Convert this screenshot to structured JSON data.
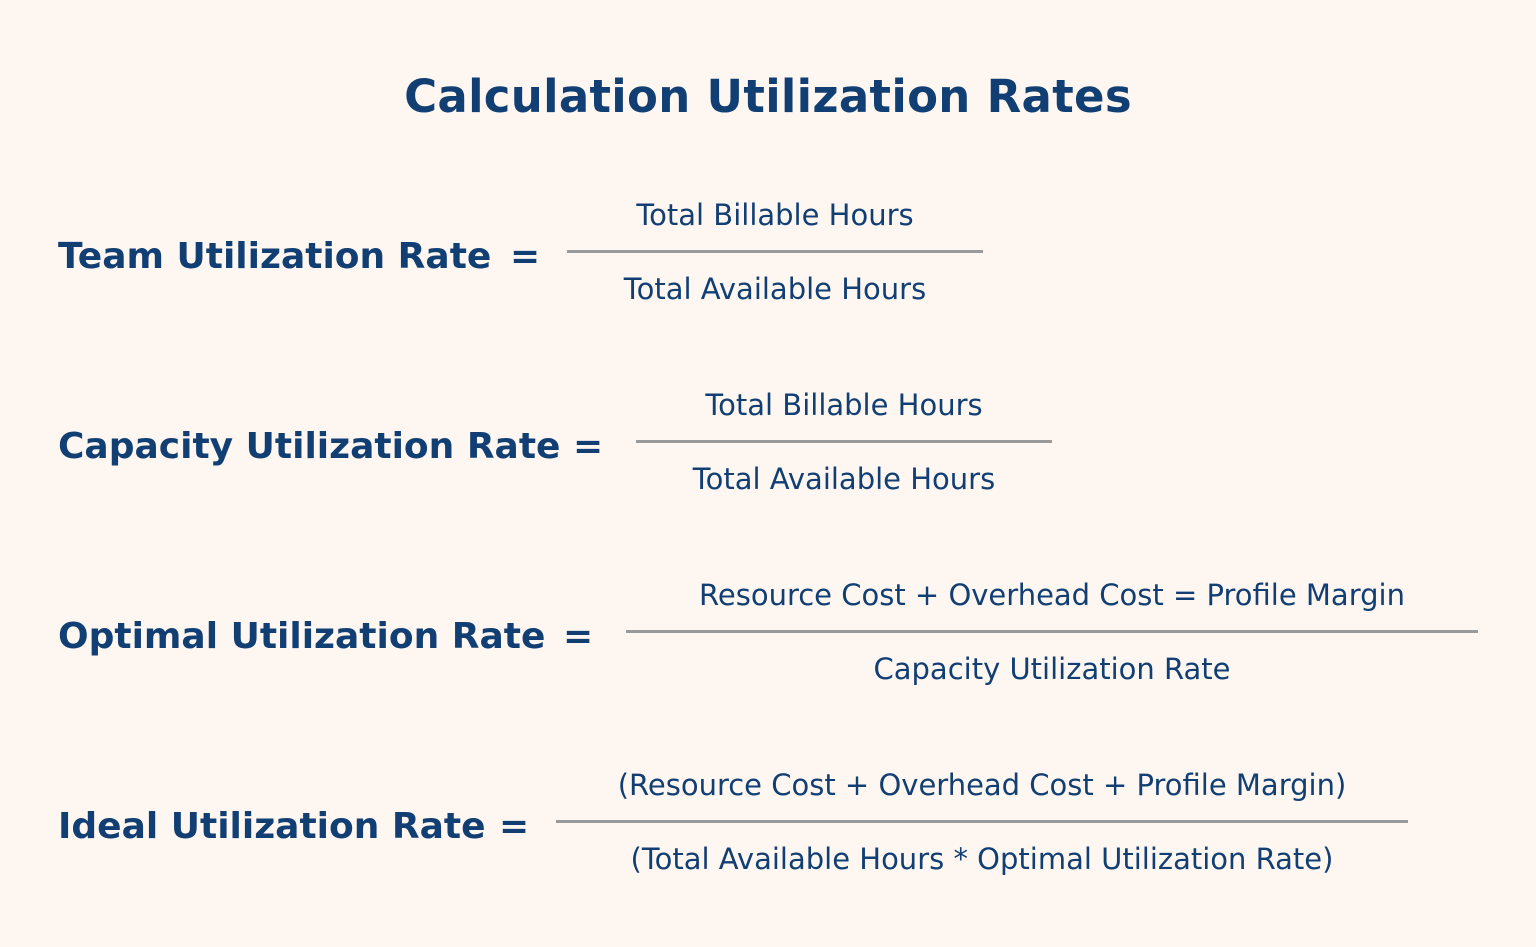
{
  "title": "Calculation Utilization Rates",
  "formulas": [
    {
      "label": "Team Utilization Rate",
      "operator": "=",
      "numerator": "Total Billable Hours",
      "denominator": "Total Available Hours"
    },
    {
      "label": "Capacity Utilization Rate",
      "operator": "=",
      "numerator": "Total Billable Hours",
      "denominator": "Total Available Hours"
    },
    {
      "label": "Optimal Utilization Rate",
      "operator": "=",
      "numerator": "Resource Cost + Overhead Cost = Profile Margin",
      "denominator": "Capacity Utilization Rate"
    },
    {
      "label": "Ideal Utilization Rate",
      "operator": "=",
      "numerator": "(Resource Cost + Overhead Cost + Profile Margin)",
      "denominator": "(Total Available Hours * Optimal Utilization Rate)"
    }
  ],
  "colors": {
    "background": "#fdf6f1",
    "text": "#123f73",
    "fraction_bar": "#9a9a9a"
  }
}
